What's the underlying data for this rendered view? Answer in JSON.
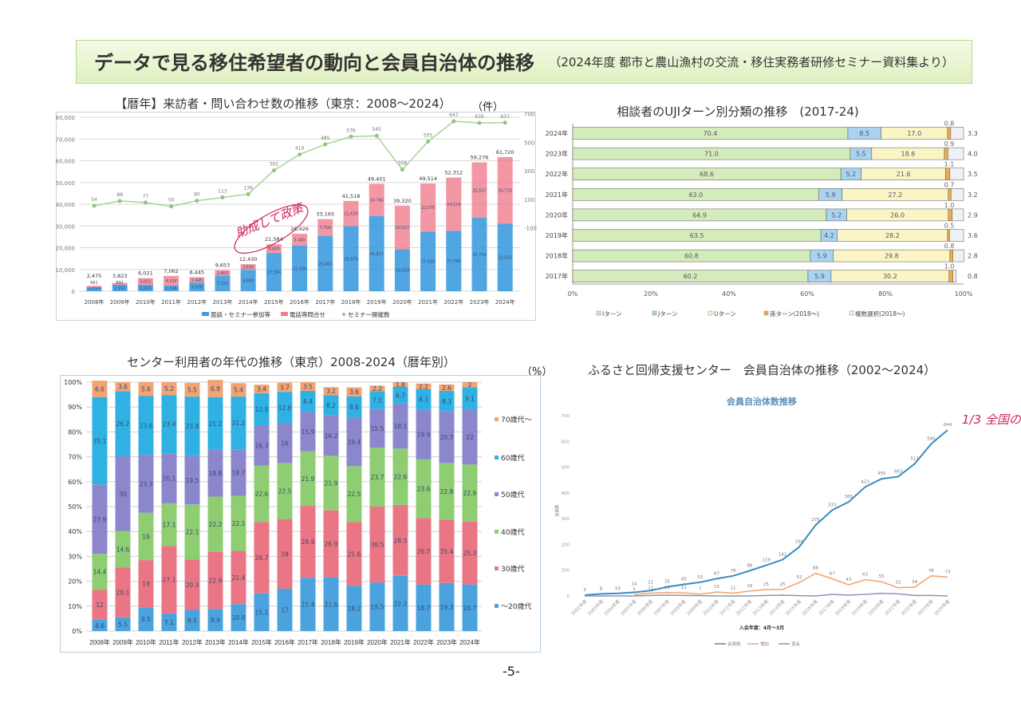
{
  "header": {
    "title": "データで見る移住希望者の動向と会員自治体の推移",
    "subtitle": "（2024年度 都市と農山漁村の交流・移住実務者研修セミナー資料集より）"
  },
  "page_number": "-5-",
  "annotations": {
    "chart1_handwritten": "助成して政策",
    "chart4_handwritten": "1/3 全国の"
  },
  "colors": {
    "banner_green": "#dff0c0",
    "visit_blue": "#3d9be0",
    "phone_pink": "#ef7d8c",
    "seminar_green": "#9fd08a",
    "handwriting_red": "#d0245a"
  },
  "chart_data": [
    {
      "type": "bar",
      "stacked": true,
      "title": "【暦年】来訪者・問い合わせ数の推移（東京：2008〜2024）",
      "unit": "（件）",
      "categories": [
        "2008年",
        "2009年",
        "2010年",
        "2011年",
        "2012年",
        "2013年",
        "2014年",
        "2015年",
        "2016年",
        "2017年",
        "2018年",
        "2019年",
        "2020年",
        "2021年",
        "2022年",
        "2023年",
        "2024年"
      ],
      "series": [
        {
          "name": "面談・セミナー参加等",
          "values": [
            1814,
            2932,
            3000,
            2548,
            4000,
            7250,
            9800,
            17584,
            21026,
            25465,
            29879,
            34617,
            19293,
            27439,
            27788,
            33739,
            31010
          ]
        },
        {
          "name": "電話等問合せ",
          "values": [
            661,
            891,
            3021,
            4514,
            2445,
            2403,
            2630,
            4000,
            5400,
            7700,
            11639,
            14784,
            20027,
            22075,
            24524,
            25537,
            30710
          ]
        },
        {
          "name": "セミナー開催数",
          "axis": "right",
          "type": "line",
          "values": [
            54,
            88,
            77,
            50,
            90,
            113,
            136,
            302,
            414,
            485,
            539,
            545,
            308,
            505,
            647,
            635,
            637
          ]
        }
      ],
      "totals": [
        "2,475",
        "3,823",
        "6,021",
        "7,062",
        "6,445",
        "9,653",
        "12,430",
        "21,584",
        "26,426",
        "33,165",
        "41,518",
        "49,401",
        "39,320",
        "49,514",
        "52,312",
        "59,276",
        "61,720"
      ],
      "ylim": [
        0,
        80000
      ],
      "yticks": [
        "0",
        "10,000",
        "20,000",
        "30,000",
        "40,000",
        "50,000",
        "60,000",
        "70,000",
        "80,000"
      ],
      "yticks_values": [
        0,
        10000,
        20000,
        30000,
        40000,
        50000,
        60000,
        70000,
        80000
      ],
      "y2ticks": [
        "700",
        "500",
        "300",
        "100",
        "-100"
      ],
      "y2ticks_values": [
        700,
        500,
        300,
        100,
        -100
      ],
      "legend": "bottom"
    },
    {
      "type": "bar",
      "orientation": "horizontal",
      "stacked_percent": true,
      "title": "相談者のUJIターン別分類の推移　(2017-24)",
      "categories": [
        "2024年",
        "2023年",
        "2022年",
        "2021年",
        "2020年",
        "2019年",
        "2018年",
        "2017年"
      ],
      "series": [
        {
          "name": "Iターン",
          "values": [
            70.4,
            71.0,
            68.6,
            63.0,
            64.9,
            63.5,
            60.8,
            60.2
          ]
        },
        {
          "name": "Jターン",
          "values": [
            8.5,
            5.5,
            5.2,
            5.9,
            5.2,
            4.2,
            5.9,
            5.9
          ]
        },
        {
          "name": "Uターン",
          "values": [
            17.0,
            18.6,
            21.6,
            27.2,
            26.0,
            28.2,
            29.8,
            30.2
          ]
        },
        {
          "name": "孫ターン(2018〜)",
          "values": [
            0.8,
            0.9,
            1.1,
            0.7,
            1.0,
            0.5,
            0.8,
            1.0
          ]
        },
        {
          "name": "複数選択(2018〜)",
          "values": [
            3.3,
            4.0,
            3.5,
            3.2,
            2.9,
            3.6,
            2.8,
            0.8
          ]
        }
      ],
      "xticks": [
        "0%",
        "20%",
        "40%",
        "60%",
        "80%",
        "100%"
      ],
      "xlim": [
        0,
        100
      ],
      "legend": "bottom"
    },
    {
      "type": "bar",
      "stacked_percent": true,
      "title": "センター利用者の年代の推移（東京）2008-2024（暦年別）",
      "unit": "（%）",
      "categories": [
        "2008年",
        "2009年",
        "2010年",
        "2011年",
        "2012年",
        "2013年",
        "2014年",
        "2015年",
        "2016年",
        "2017年",
        "2018年",
        "2019年",
        "2020年",
        "2021年",
        "2022年",
        "2023年",
        "2024年"
      ],
      "series": [
        {
          "name": "〜20歳代",
          "values": [
            4.6,
            5.5,
            9.5,
            7.1,
            8.5,
            8.9,
            10.8,
            15.1,
            17.0,
            21.4,
            21.6,
            18.2,
            19.5,
            22.2,
            18.7,
            19.3,
            18.7
          ]
        },
        {
          "name": "30歳代",
          "values": [
            12.0,
            20.1,
            19.0,
            27.1,
            20.3,
            22.9,
            21.4,
            28.7,
            28.0,
            28.9,
            26.9,
            25.6,
            30.5,
            28.5,
            26.7,
            25.4,
            25.3
          ]
        },
        {
          "name": "40歳代",
          "values": [
            14.4,
            14.6,
            19.0,
            17.1,
            22.1,
            22.2,
            22.1,
            22.6,
            22.5,
            21.9,
            21.9,
            22.5,
            23.7,
            22.6,
            23.6,
            22.8,
            22.9
          ]
        },
        {
          "name": "50歳代",
          "values": [
            27.9,
            30.0,
            23.3,
            20.1,
            19.5,
            18.8,
            18.7,
            16.3,
            16.0,
            15.9,
            16.2,
            19.4,
            15.5,
            18.1,
            19.9,
            20.7,
            22
          ]
        },
        {
          "name": "60歳代",
          "values": [
            35.1,
            26.2,
            23.6,
            23.4,
            23.8,
            21.2,
            21.2,
            12.9,
            12.6,
            8.4,
            8.2,
            8.6,
            7.2,
            6.7,
            8.3,
            8.3,
            9.1
          ]
        },
        {
          "name": "70歳代〜",
          "values": [
            6.6,
            3.6,
            5.6,
            5.2,
            5.5,
            6.9,
            5.4,
            3.4,
            3.7,
            3.5,
            3.2,
            3.6,
            2.2,
            1.8,
            2.2,
            2.6,
            2
          ]
        }
      ],
      "yticks": [
        "0%",
        "10%",
        "20%",
        "30%",
        "40%",
        "50%",
        "60%",
        "70%",
        "80%",
        "90%",
        "100%"
      ],
      "ylim": [
        0,
        100
      ],
      "legend": "right"
    },
    {
      "type": "line",
      "heading": "ふるさと回帰支援センター　会員自治体の推移（2002〜2024）",
      "title": "会員自治体数推移",
      "xlabel": "入会年度：4月〜3月",
      "ylabel": "会員数",
      "x": [
        "2002年度",
        "2003年度",
        "2004年度",
        "2005年度",
        "2006年度",
        "2007年度",
        "2008年度",
        "2009年度",
        "2010年度",
        "2011年度",
        "2012年度",
        "2013年度",
        "2014年度",
        "2015年度",
        "2016年度",
        "2017年度",
        "2018年度",
        "2019年度",
        "2020年度",
        "2021年度",
        "2022年度",
        "2023年度",
        "2024年度"
      ],
      "series": [
        {
          "name": "会員数",
          "values": [
            3,
            8,
            10,
            14,
            21,
            35,
            45,
            53,
            67,
            78,
            98,
            119,
            141,
            190,
            275,
            333,
            365,
            423,
            455,
            463,
            513,
            590,
            644
          ]
        },
        {
          "name": "増加",
          "values": [
            null,
            null,
            null,
            5,
            11,
            13,
            12,
            7,
            15,
            11,
            19,
            25,
            25,
            52,
            88,
            67,
            43,
            63,
            55,
            32,
            34,
            78,
            73
          ]
        },
        {
          "name": "退会",
          "values": [
            0,
            0,
            0,
            0,
            2,
            3,
            2,
            1,
            0,
            0,
            0,
            2,
            3,
            1,
            0,
            6,
            3,
            6,
            10,
            8,
            2,
            2,
            0
          ]
        }
      ],
      "yticks": [
        "0",
        "100",
        "200",
        "300",
        "400",
        "500",
        "600",
        "700"
      ],
      "ylim": [
        0,
        700
      ],
      "legend": "bottom"
    }
  ]
}
